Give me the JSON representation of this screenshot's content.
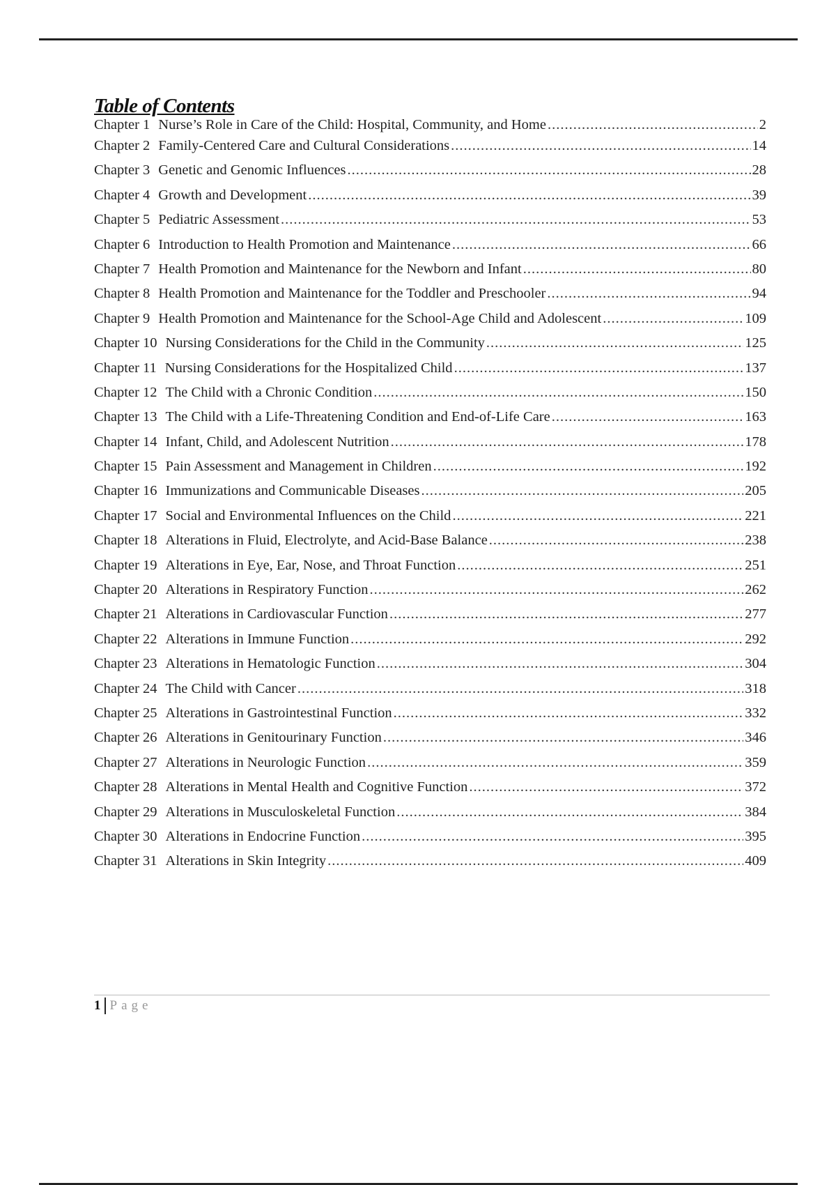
{
  "toc": {
    "title": "Table of Contents",
    "entries": [
      {
        "label": "Chapter 1",
        "title": "Nurse’s Role in Care of the Child: Hospital, Community, and Home",
        "page": "2"
      },
      {
        "label": "Chapter 2",
        "title": "Family-Centered Care and Cultural Considerations",
        "page": "14"
      },
      {
        "label": "Chapter 3",
        "title": "Genetic and Genomic Influences",
        "page": "28"
      },
      {
        "label": "Chapter 4",
        "title": "Growth and Development",
        "page": "39"
      },
      {
        "label": "Chapter 5",
        "title": "Pediatric Assessment",
        "page": "53"
      },
      {
        "label": "Chapter 6",
        "title": "Introduction to Health Promotion and Maintenance",
        "page": "66"
      },
      {
        "label": "Chapter 7",
        "title": "Health Promotion and Maintenance for the Newborn and Infant",
        "page": "80"
      },
      {
        "label": "Chapter 8",
        "title": "Health Promotion and Maintenance for the Toddler and Preschooler",
        "page": "94"
      },
      {
        "label": "Chapter 9",
        "title": "Health Promotion and Maintenance for the School-Age Child and Adolescent",
        "page": "109"
      },
      {
        "label": "Chapter 10",
        "title": "Nursing Considerations for the Child in the Community",
        "page": "125"
      },
      {
        "label": "Chapter 11",
        "title": "Nursing Considerations for the Hospitalized Child",
        "page": "137"
      },
      {
        "label": "Chapter 12",
        "title": "The Child with a Chronic Condition",
        "page": "150"
      },
      {
        "label": "Chapter 13",
        "title": "The Child with a Life-Threatening Condition and End-of-Life Care",
        "page": "163"
      },
      {
        "label": "Chapter 14",
        "title": "Infant, Child, and Adolescent Nutrition",
        "page": "178"
      },
      {
        "label": "Chapter 15",
        "title": "Pain Assessment and Management in Children",
        "page": "192"
      },
      {
        "label": "Chapter 16",
        "title": "Immunizations and Communicable Diseases",
        "page": "205"
      },
      {
        "label": "Chapter 17",
        "title": "Social and Environmental Influences on the Child",
        "page": "221"
      },
      {
        "label": "Chapter 18",
        "title": "Alterations in Fluid, Electrolyte, and Acid-Base Balance",
        "page": "238"
      },
      {
        "label": "Chapter 19",
        "title": "Alterations in Eye, Ear, Nose, and Throat Function",
        "page": "251"
      },
      {
        "label": "Chapter 20",
        "title": "Alterations in Respiratory Function",
        "page": "262"
      },
      {
        "label": "Chapter 21",
        "title": "Alterations in Cardiovascular Function",
        "page": "277"
      },
      {
        "label": "Chapter 22",
        "title": "Alterations in Immune Function",
        "page": "292"
      },
      {
        "label": "Chapter 23",
        "title": "Alterations in Hematologic Function",
        "page": "304"
      },
      {
        "label": "Chapter 24",
        "title": "The Child with Cancer",
        "page": "318"
      },
      {
        "label": "Chapter 25",
        "title": "Alterations in Gastrointestinal Function",
        "page": "332"
      },
      {
        "label": "Chapter 26",
        "title": "Alterations in Genitourinary Function",
        "page": "346"
      },
      {
        "label": "Chapter 27",
        "title": "Alterations in Neurologic Function",
        "page": "359"
      },
      {
        "label": "Chapter 28",
        "title": "Alterations in Mental Health and Cognitive Function",
        "page": "372"
      },
      {
        "label": "Chapter 29",
        "title": "Alterations in Musculoskeletal Function",
        "page": "384"
      },
      {
        "label": "Chapter 30",
        "title": "Alterations in Endocrine Function",
        "page": "395"
      },
      {
        "label": "Chapter 31",
        "title": "Alterations in Skin Integrity",
        "page": "409"
      }
    ]
  },
  "footer": {
    "page_number": "1",
    "page_word": "Page"
  }
}
